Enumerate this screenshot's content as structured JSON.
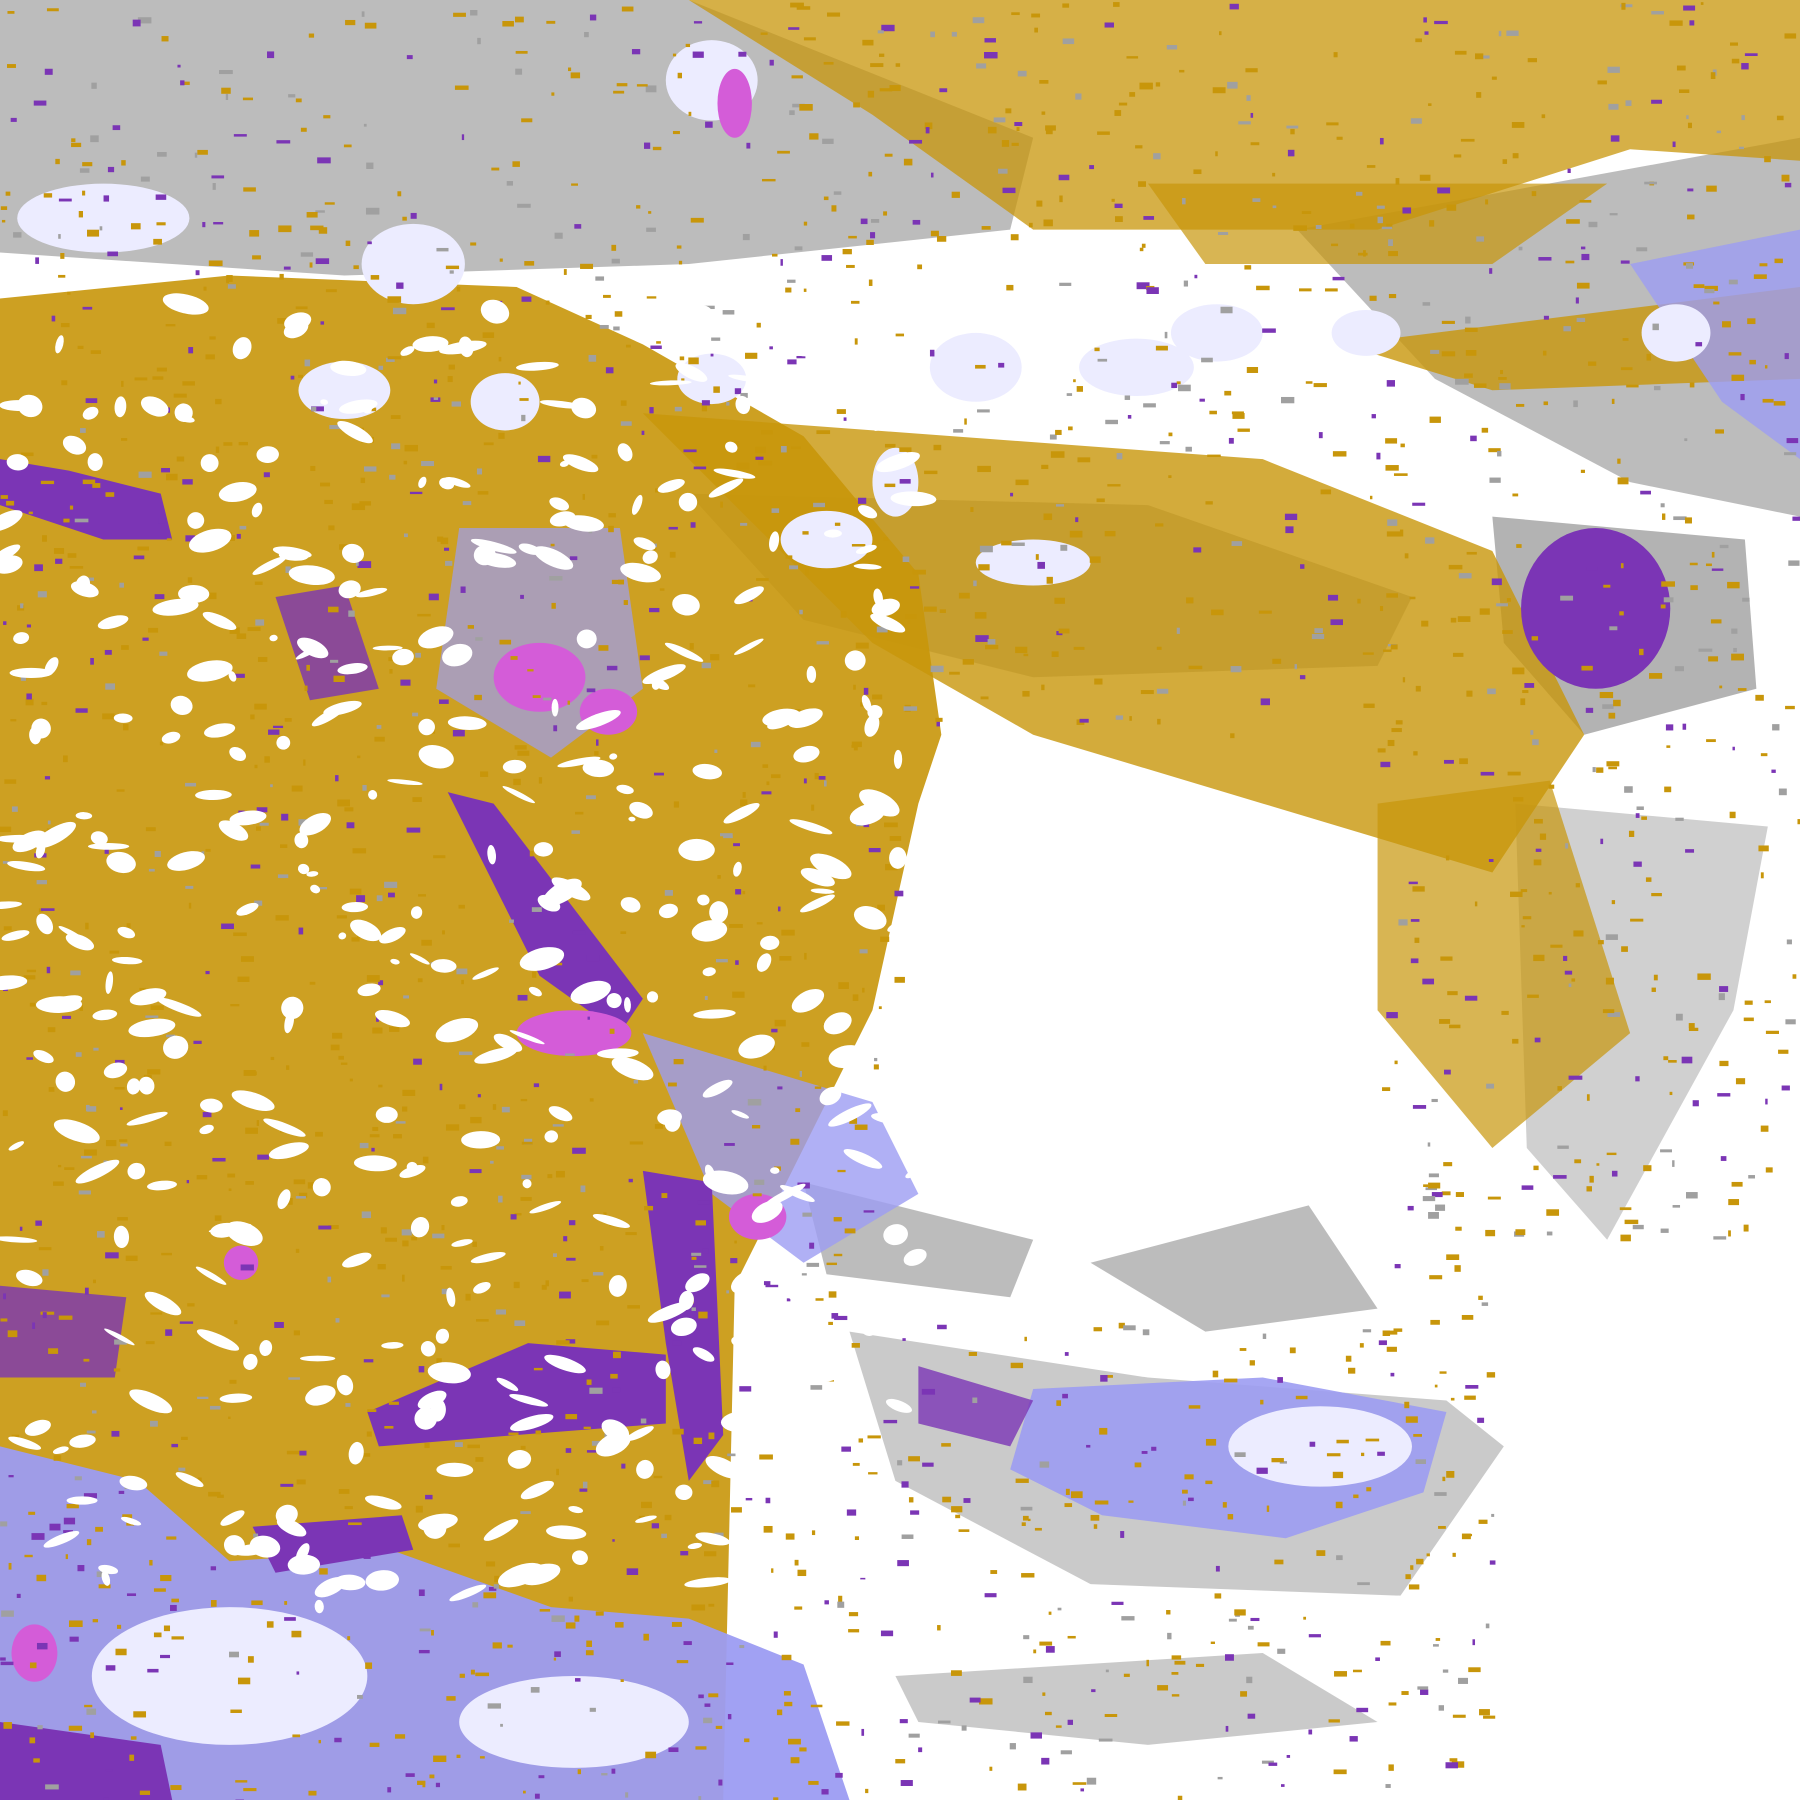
{
  "map": {
    "background_color": "#ffffff",
    "palette": {
      "gold": "#c8960a",
      "purple": "#7b35b5",
      "magenta": "#d45cd8",
      "lavender": "#c8c8ff",
      "pale_lavender": "#ececff",
      "periwinkle": "#9c9cf2",
      "gray": "#a0a0a0",
      "light_gray": "#c4c4c4"
    }
  }
}
